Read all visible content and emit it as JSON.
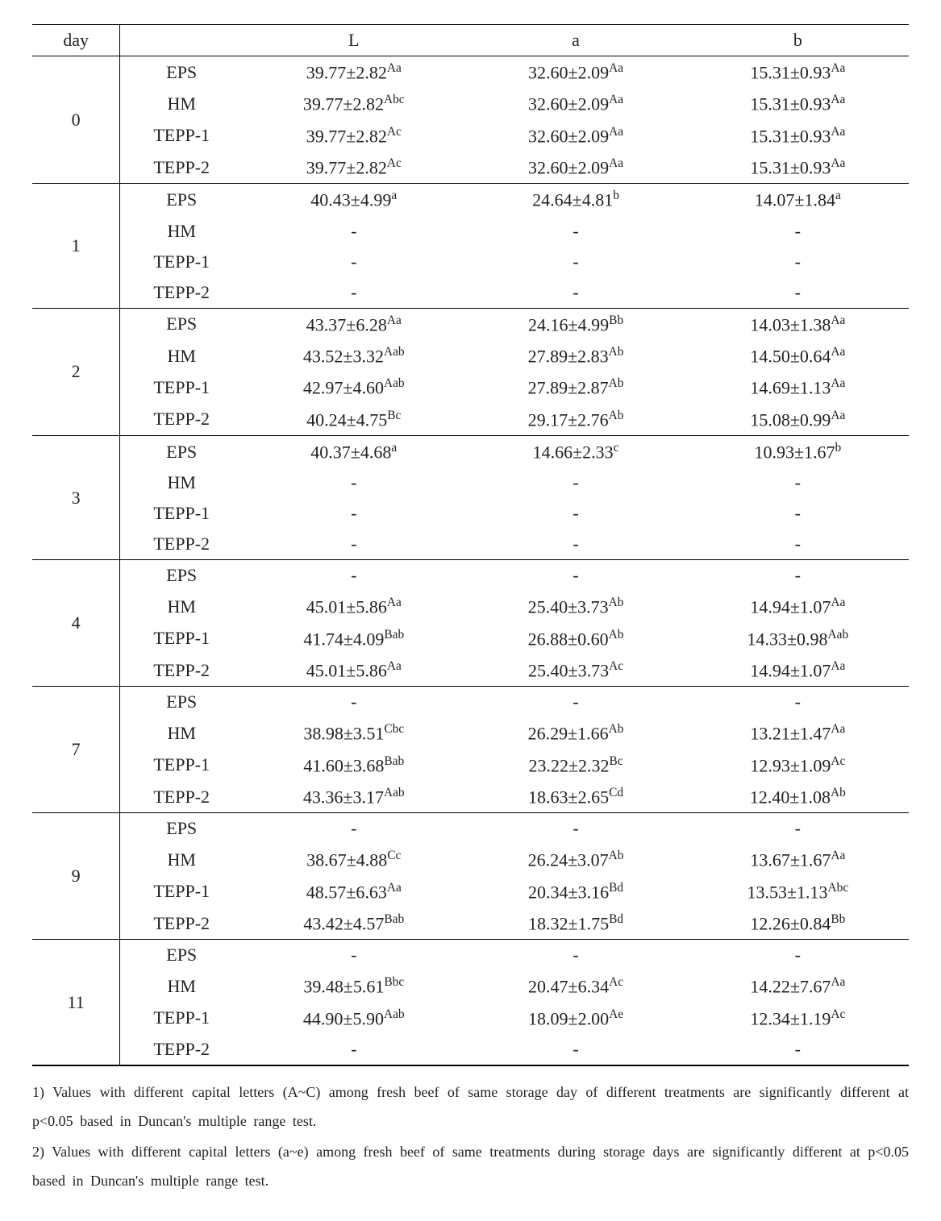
{
  "header": {
    "day": "day",
    "treatment": "",
    "L": "L",
    "a": "a",
    "b": "b"
  },
  "groups": [
    {
      "day": "0",
      "rows": [
        {
          "t": "EPS",
          "L_v": "39.77±2.82",
          "L_s": "Aa",
          "a_v": "32.60±2.09",
          "a_s": "Aa",
          "b_v": "15.31±0.93",
          "b_s": "Aa"
        },
        {
          "t": "HM",
          "L_v": "39.77±2.82",
          "L_s": "Abc",
          "a_v": "32.60±2.09",
          "a_s": "Aa",
          "b_v": "15.31±0.93",
          "b_s": "Aa"
        },
        {
          "t": "TEPP-1",
          "L_v": "39.77±2.82",
          "L_s": "Ac",
          "a_v": "32.60±2.09",
          "a_s": "Aa",
          "b_v": "15.31±0.93",
          "b_s": "Aa"
        },
        {
          "t": "TEPP-2",
          "L_v": "39.77±2.82",
          "L_s": "Ac",
          "a_v": "32.60±2.09",
          "a_s": "Aa",
          "b_v": "15.31±0.93",
          "b_s": "Aa"
        }
      ]
    },
    {
      "day": "1",
      "rows": [
        {
          "t": "EPS",
          "L_v": "40.43±4.99",
          "L_s": "a",
          "a_v": "24.64±4.81",
          "a_s": "b",
          "b_v": "14.07±1.84",
          "b_s": "a"
        },
        {
          "t": "HM",
          "L_v": "-",
          "L_s": "",
          "a_v": "-",
          "a_s": "",
          "b_v": "-",
          "b_s": ""
        },
        {
          "t": "TEPP-1",
          "L_v": "-",
          "L_s": "",
          "a_v": "-",
          "a_s": "",
          "b_v": "-",
          "b_s": ""
        },
        {
          "t": "TEPP-2",
          "L_v": "-",
          "L_s": "",
          "a_v": "-",
          "a_s": "",
          "b_v": "-",
          "b_s": ""
        }
      ]
    },
    {
      "day": "2",
      "rows": [
        {
          "t": "EPS",
          "L_v": "43.37±6.28",
          "L_s": "Aa",
          "a_v": "24.16±4.99",
          "a_s": "Bb",
          "b_v": "14.03±1.38",
          "b_s": "Aa"
        },
        {
          "t": "HM",
          "L_v": "43.52±3.32",
          "L_s": "Aab",
          "a_v": "27.89±2.83",
          "a_s": "Ab",
          "b_v": "14.50±0.64",
          "b_s": "Aa"
        },
        {
          "t": "TEPP-1",
          "L_v": "42.97±4.60",
          "L_s": "Aab",
          "a_v": "27.89±2.87",
          "a_s": "Ab",
          "b_v": "14.69±1.13",
          "b_s": "Aa"
        },
        {
          "t": "TEPP-2",
          "L_v": "40.24±4.75",
          "L_s": "Bc",
          "a_v": "29.17±2.76",
          "a_s": "Ab",
          "b_v": "15.08±0.99",
          "b_s": "Aa"
        }
      ]
    },
    {
      "day": "3",
      "rows": [
        {
          "t": "EPS",
          "L_v": "40.37±4.68",
          "L_s": "a",
          "a_v": "14.66±2.33",
          "a_s": "c",
          "b_v": "10.93±1.67",
          "b_s": "b"
        },
        {
          "t": "HM",
          "L_v": "-",
          "L_s": "",
          "a_v": "-",
          "a_s": "",
          "b_v": "-",
          "b_s": ""
        },
        {
          "t": "TEPP-1",
          "L_v": "-",
          "L_s": "",
          "a_v": "-",
          "a_s": "",
          "b_v": "-",
          "b_s": ""
        },
        {
          "t": "TEPP-2",
          "L_v": "-",
          "L_s": "",
          "a_v": "-",
          "a_s": "",
          "b_v": "-",
          "b_s": ""
        }
      ]
    },
    {
      "day": "4",
      "rows": [
        {
          "t": "EPS",
          "L_v": "-",
          "L_s": "",
          "a_v": "-",
          "a_s": "",
          "b_v": "-",
          "b_s": ""
        },
        {
          "t": "HM",
          "L_v": "45.01±5.86",
          "L_s": "Aa",
          "a_v": "25.40±3.73",
          "a_s": "Ab",
          "b_v": "14.94±1.07",
          "b_s": "Aa"
        },
        {
          "t": "TEPP-1",
          "L_v": "41.74±4.09",
          "L_s": "Bab",
          "a_v": "26.88±0.60",
          "a_s": "Ab",
          "b_v": "14.33±0.98",
          "b_s": "Aab"
        },
        {
          "t": "TEPP-2",
          "L_v": "45.01±5.86",
          "L_s": "Aa",
          "a_v": "25.40±3.73",
          "a_s": "Ac",
          "b_v": "14.94±1.07",
          "b_s": "Aa"
        }
      ]
    },
    {
      "day": "7",
      "rows": [
        {
          "t": "EPS",
          "L_v": "-",
          "L_s": "",
          "a_v": "-",
          "a_s": "",
          "b_v": "-",
          "b_s": ""
        },
        {
          "t": "HM",
          "L_v": "38.98±3.51",
          "L_s": "Cbc",
          "a_v": "26.29±1.66",
          "a_s": "Ab",
          "b_v": "13.21±1.47",
          "b_s": "Aa"
        },
        {
          "t": "TEPP-1",
          "L_v": "41.60±3.68",
          "L_s": "Bab",
          "a_v": "23.22±2.32",
          "a_s": "Bc",
          "b_v": "12.93±1.09",
          "b_s": "Ac"
        },
        {
          "t": "TEPP-2",
          "L_v": "43.36±3.17",
          "L_s": "Aab",
          "a_v": "18.63±2.65",
          "a_s": "Cd",
          "b_v": "12.40±1.08",
          "b_s": "Ab"
        }
      ]
    },
    {
      "day": "9",
      "rows": [
        {
          "t": "EPS",
          "L_v": "-",
          "L_s": "",
          "a_v": "-",
          "a_s": "",
          "b_v": "-",
          "b_s": ""
        },
        {
          "t": "HM",
          "L_v": "38.67±4.88",
          "L_s": "Cc",
          "a_v": "26.24±3.07",
          "a_s": "Ab",
          "b_v": "13.67±1.67",
          "b_s": "Aa"
        },
        {
          "t": "TEPP-1",
          "L_v": "48.57±6.63",
          "L_s": "Aa",
          "a_v": "20.34±3.16",
          "a_s": "Bd",
          "b_v": "13.53±1.13",
          "b_s": "Abc"
        },
        {
          "t": "TEPP-2",
          "L_v": "43.42±4.57",
          "L_s": "Bab",
          "a_v": "18.32±1.75",
          "a_s": "Bd",
          "b_v": "12.26±0.84",
          "b_s": "Bb"
        }
      ]
    },
    {
      "day": "11",
      "rows": [
        {
          "t": "EPS",
          "L_v": "-",
          "L_s": "",
          "a_v": "-",
          "a_s": "",
          "b_v": "-",
          "b_s": ""
        },
        {
          "t": "HM",
          "L_v": "39.48±5.61",
          "L_s": "Bbc",
          "a_v": "20.47±6.34",
          "a_s": "Ac",
          "b_v": "14.22±7.67",
          "b_s": "Aa"
        },
        {
          "t": "TEPP-1",
          "L_v": "44.90±5.90",
          "L_s": "Aab",
          "a_v": "18.09±2.00",
          "a_s": "Ae",
          "b_v": "12.34±1.19",
          "b_s": "Ac"
        },
        {
          "t": "TEPP-2",
          "L_v": "-",
          "L_s": "",
          "a_v": "-",
          "a_s": "",
          "b_v": "-",
          "b_s": ""
        }
      ]
    }
  ],
  "notes": {
    "n1": "1) Values with different capital letters (A~C) among fresh beef of same storage day of different treatments are significantly different at p<0.05 based in Duncan's multiple range test.",
    "n2": "2) Values with different capital letters (a~e) among fresh beef of same treatments during storage days are significantly different at p<0.05 based in Duncan's multiple range test."
  }
}
